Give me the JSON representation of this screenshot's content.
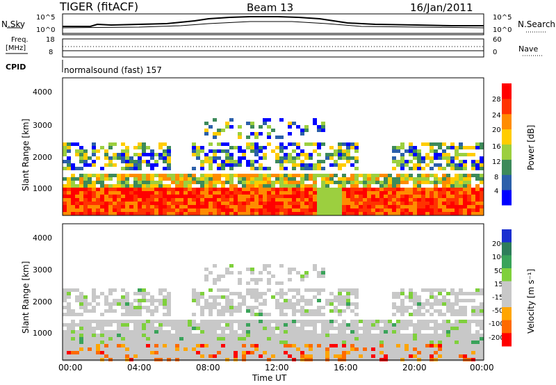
{
  "header": {
    "radar": "TIGER (fitACF)",
    "beam": "Beam 13",
    "date": "16/Jan/2011"
  },
  "top_panel": {
    "nsky_label": "N.Sky",
    "nsearch_label": "N.Search",
    "left_ticks": [
      "10^5",
      "10^0"
    ],
    "right_ticks": [
      "10^5",
      "10^0"
    ]
  },
  "freq_panel": {
    "label_line1": "Freq.",
    "label_line2": "[MHz]",
    "left_ticks": [
      "18",
      "8"
    ],
    "right_ticks": [
      "60",
      "0"
    ],
    "nave_label": "Nave",
    "cpid_label": "CPID",
    "cpid_value": "normalsound (fast) 157"
  },
  "colors": {
    "power_scale": [
      "#0000ff",
      "#2b5faa",
      "#3d8a5a",
      "#9ccf3f",
      "#ffcc00",
      "#ff8c00",
      "#ff3300",
      "#ff0000"
    ],
    "velocity_scale": [
      "#1a2fd0",
      "#2e7d5a",
      "#3aa35a",
      "#7fd03c",
      "#c8c8c8",
      "#c8c8c8",
      "#ffa500",
      "#ff6a00",
      "#ff0000"
    ]
  },
  "chart_data": [
    {
      "type": "heatmap",
      "name": "power",
      "title": "",
      "xlabel": "Time UT",
      "ylabel": "Slant Range [km]",
      "colorbar_label": "Power [dB]",
      "colorbar_ticks": [
        "28",
        "24",
        "20",
        "16",
        "12",
        "8",
        "4"
      ],
      "x_ticks": [
        "00:00",
        "04:00",
        "08:00",
        "12:00",
        "16:00",
        "20:00",
        "00:00"
      ],
      "y_ticks": [
        "4000",
        "3000",
        "2000",
        "1000"
      ],
      "xlim": [
        "00:00",
        "24:00"
      ],
      "ylim": [
        180,
        4500
      ]
    },
    {
      "type": "heatmap",
      "name": "velocity",
      "title": "",
      "xlabel": "Time UT",
      "ylabel": "Slant Range [km]",
      "colorbar_label": "Velocity [m s⁻¹]",
      "colorbar_ticks": [
        "200",
        "100",
        "50",
        "15",
        "-15",
        "-50",
        "-100",
        "-200"
      ],
      "x_ticks": [
        "00:00",
        "04:00",
        "08:00",
        "12:00",
        "16:00",
        "20:00",
        "00:00"
      ],
      "y_ticks": [
        "4000",
        "3000",
        "2000",
        "1000"
      ],
      "xlim": [
        "00:00",
        "24:00"
      ],
      "ylim": [
        180,
        4500
      ]
    }
  ]
}
